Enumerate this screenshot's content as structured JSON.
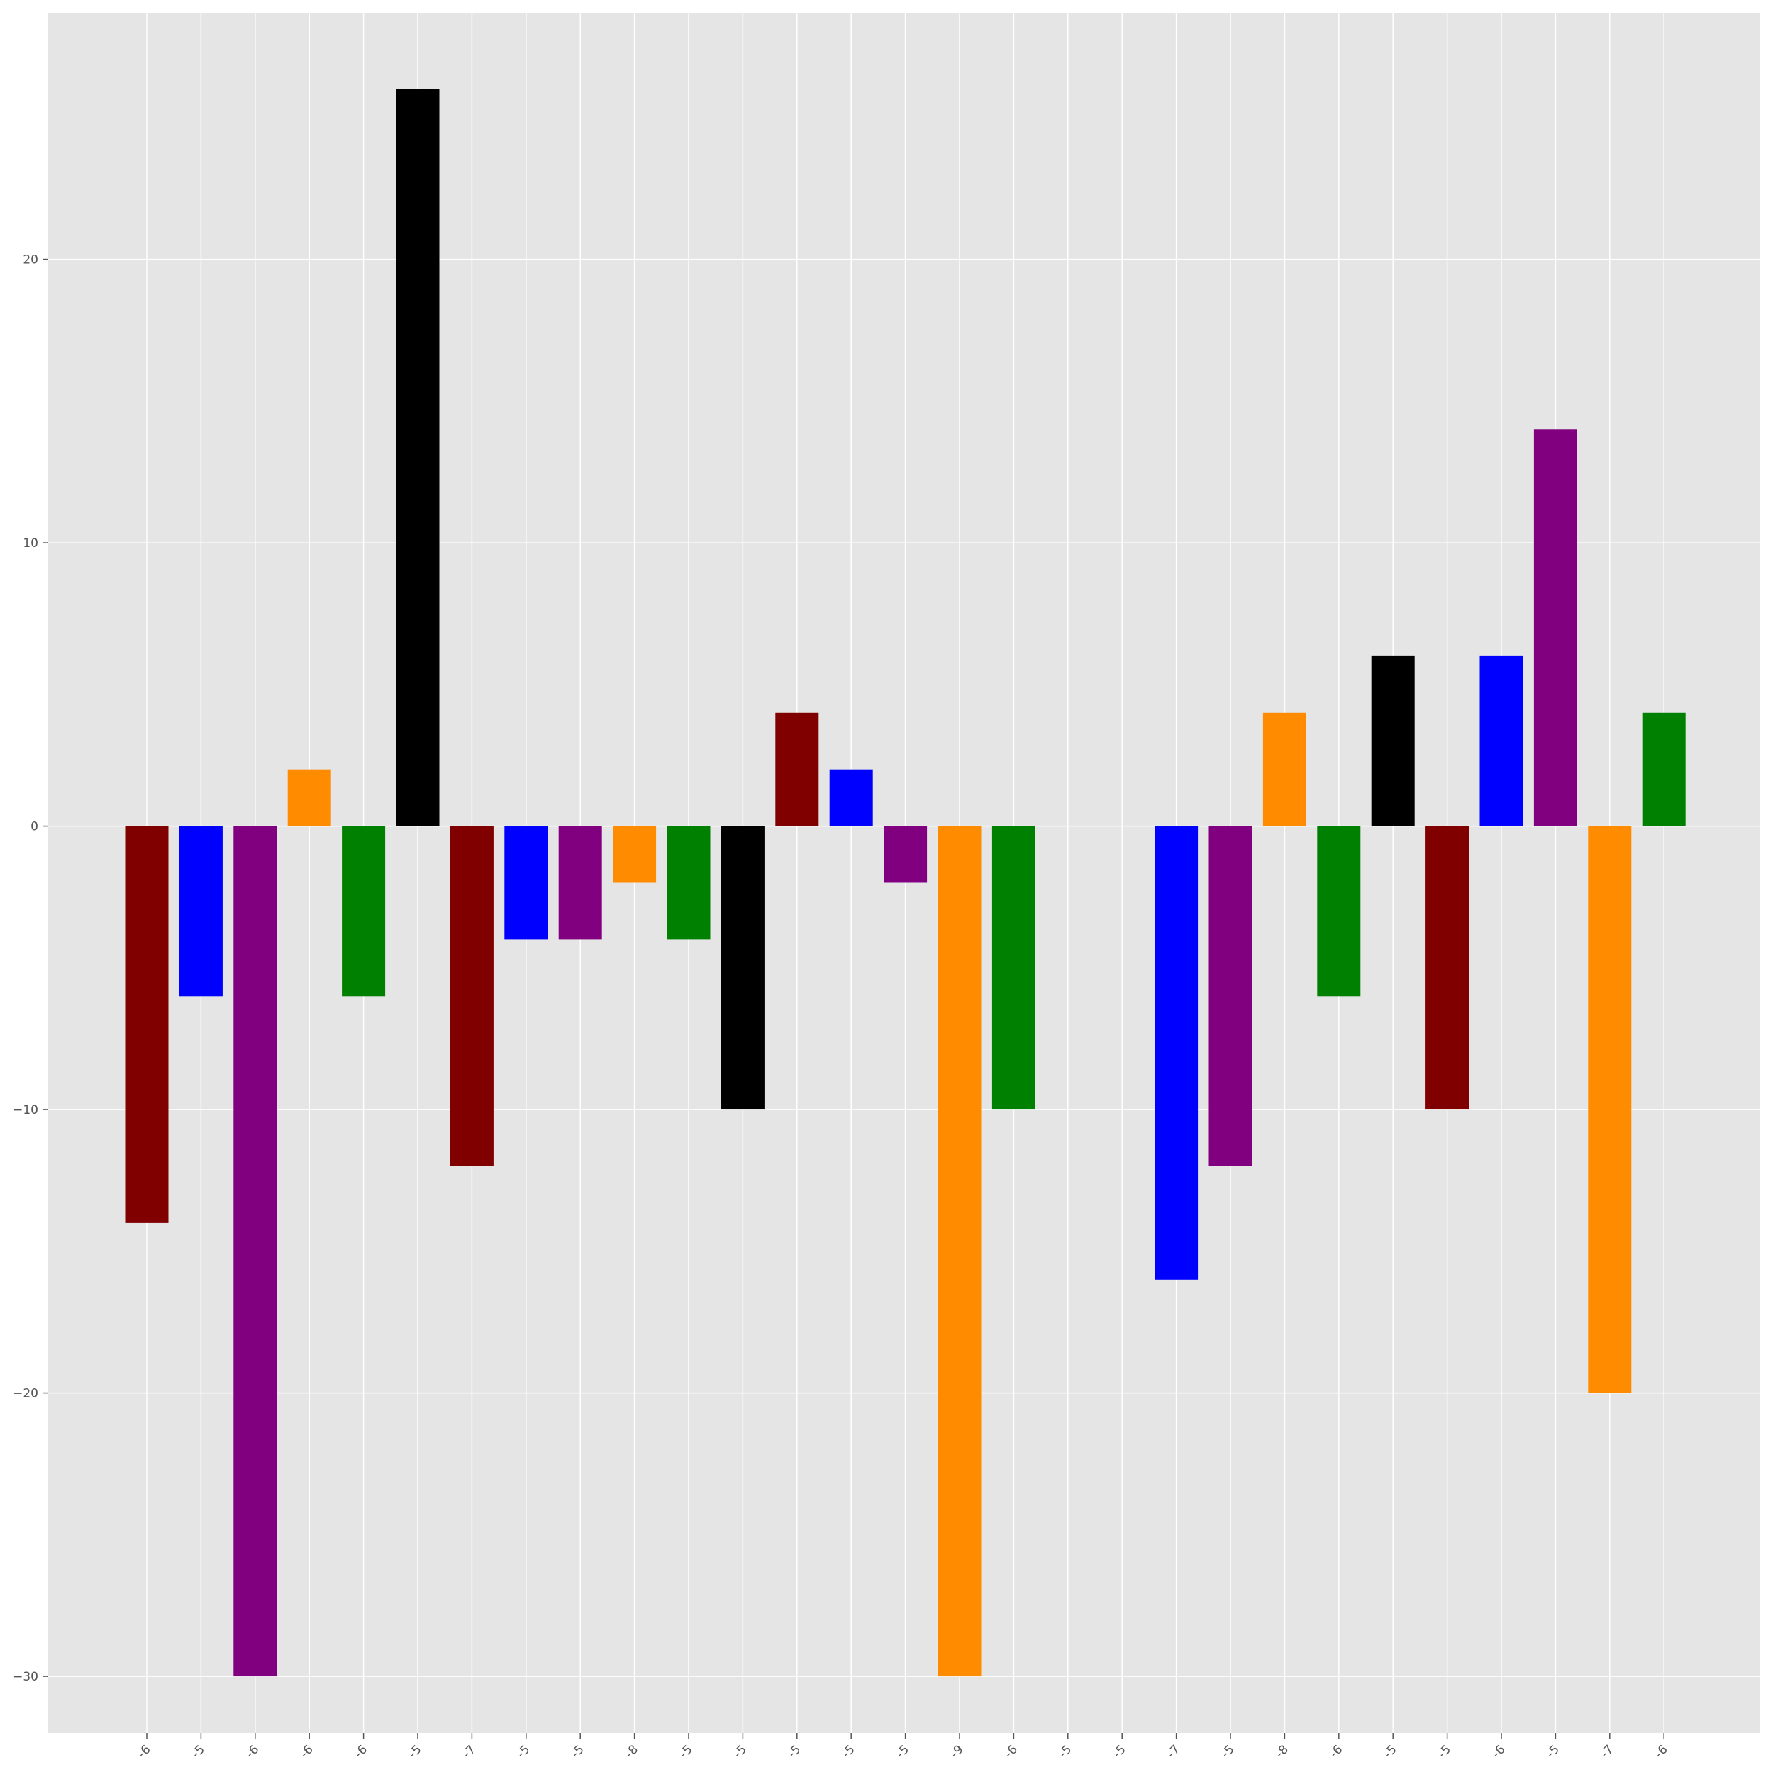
{
  "chart_data": {
    "type": "bar",
    "title": "",
    "xlabel": "",
    "ylabel": "",
    "ylim": [
      -32,
      28.7
    ],
    "yticks": [
      -30,
      -20,
      -10,
      0,
      10,
      20
    ],
    "ytick_labels": [
      "−30",
      "−20",
      "−10",
      "0",
      "10",
      "20"
    ],
    "grid": true,
    "background": "#e5e5e5",
    "grid_color": "#ffffff",
    "categories": [
      "-6",
      "-5",
      "-6",
      "-6",
      "-6",
      "-5",
      "-7",
      "-5",
      "-5",
      "-8",
      "-5",
      "-5",
      "-5",
      "-5",
      "-5",
      "-9",
      "-6",
      "-5",
      "-5",
      "-7",
      "-5",
      "-8",
      "-6",
      "-5",
      "-5",
      "-6",
      "-5",
      "-7",
      "-6"
    ],
    "values": [
      -14,
      -6,
      -30,
      2,
      -6,
      26,
      -12,
      -4,
      -4,
      -2,
      -4,
      -10,
      4,
      2,
      -2,
      -30,
      -10,
      0,
      0,
      -16,
      -12,
      4,
      -6,
      6,
      -10,
      6,
      14,
      -20,
      4
    ],
    "colors": [
      "#800000",
      "#0000ff",
      "#800080",
      "#ff8c00",
      "#008000",
      "#000000",
      "#800000",
      "#0000ff",
      "#800080",
      "#ff8c00",
      "#008000",
      "#000000",
      "#800000",
      "#0000ff",
      "#800080",
      "#ff8c00",
      "#008000",
      "#000000",
      "#800000",
      "#0000ff",
      "#800080",
      "#ff8c00",
      "#008000",
      "#000000",
      "#800000",
      "#0000ff",
      "#800080",
      "#ff8c00",
      "#008000"
    ]
  }
}
